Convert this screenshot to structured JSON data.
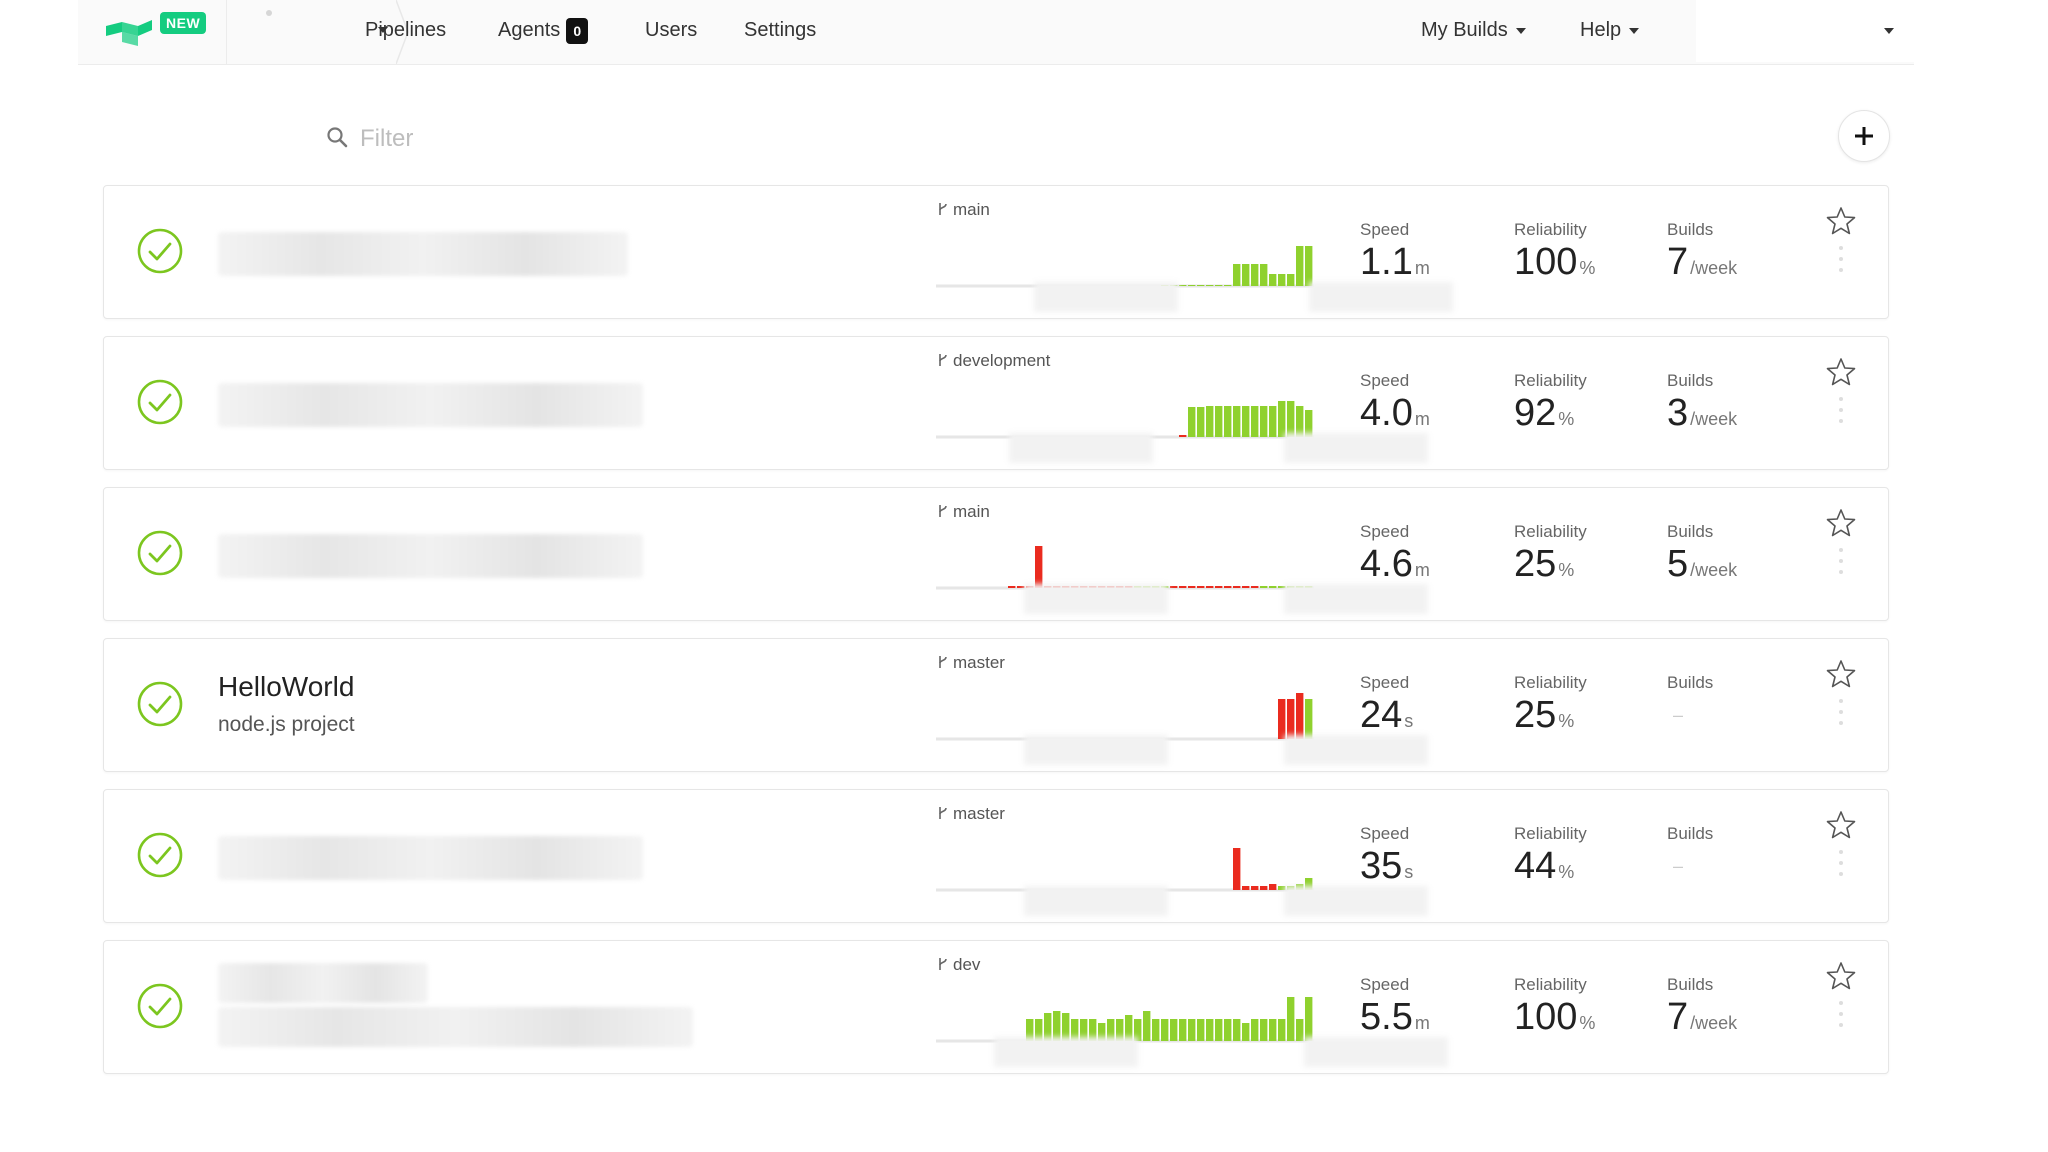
{
  "nav": {
    "new_badge": "NEW",
    "links": [
      "Pipelines",
      "Agents",
      "Users",
      "Settings"
    ],
    "agents_count": "0",
    "my_builds": "My Builds",
    "help": "Help"
  },
  "filter": {
    "placeholder": "Filter"
  },
  "colors": {
    "pass": "#8fd12e",
    "fail": "#ea2b1f",
    "brand": "#14cc80",
    "ok_icon": "#7cc61f"
  },
  "pipelines": [
    {
      "name": "",
      "description": "",
      "branch": "main",
      "speed": "1.1",
      "speed_unit": "m",
      "reliability": "100",
      "reliability_unit": "%",
      "builds": "7",
      "builds_unit": "/week",
      "history": [
        0,
        0,
        0,
        0,
        0,
        0,
        0,
        0,
        0,
        0,
        0,
        0,
        0,
        0,
        0,
        0,
        0,
        0,
        0,
        0,
        0,
        0,
        0,
        0,
        0,
        0,
        0,
        0,
        0,
        0,
        0,
        0,
        0,
        0,
        0,
        0,
        0,
        0,
        0,
        0,
        0,
        0,
        0,
        0,
        0,
        0,
        0,
        0,
        0,
        0,
        "p1",
        "p1",
        "p1",
        "p1",
        "p1",
        "p1",
        "p1",
        "p1",
        "p22",
        "p22",
        "p22",
        "p22",
        "p12",
        "p12",
        "p12",
        "p40",
        "p40"
      ]
    },
    {
      "name": "",
      "description": "",
      "branch": "development",
      "speed": "4.0",
      "speed_unit": "m",
      "reliability": "92",
      "reliability_unit": "%",
      "builds": "3",
      "builds_unit": "/week",
      "history": [
        "f2",
        "p30",
        "p30",
        "p31",
        "p31",
        "p31",
        "p31",
        "p31",
        "p31",
        "p31",
        "p31",
        "p36",
        "p36",
        "p31",
        "p27"
      ]
    },
    {
      "name": "",
      "description": "",
      "branch": "main",
      "speed": "4.6",
      "speed_unit": "m",
      "reliability": "25",
      "reliability_unit": "%",
      "builds": "5",
      "builds_unit": "/week",
      "history": [
        "f2",
        "f2",
        "f2",
        "f42",
        "f2",
        "f2",
        "f2",
        "f2",
        "f2",
        "f2",
        "f2",
        "f2",
        "f2",
        "f2",
        "p2",
        "p2",
        "p2",
        "p2",
        "f2",
        "f2",
        "f2",
        "f2",
        "f2",
        "f2",
        "f2",
        "f2",
        "f2",
        "f2",
        "p2",
        "p2",
        "p2",
        "p2",
        "p2",
        "p2"
      ]
    },
    {
      "name": "HelloWorld",
      "description": "node.js project",
      "branch": "master",
      "speed": "24",
      "speed_unit": "s",
      "reliability": "25",
      "reliability_unit": "%",
      "builds": "",
      "builds_unit": "",
      "history": [
        "f40",
        "f40",
        "f46",
        "p40"
      ]
    },
    {
      "name": "",
      "description": "",
      "branch": "master",
      "speed": "35",
      "speed_unit": "s",
      "reliability": "44",
      "reliability_unit": "%",
      "builds": "",
      "builds_unit": "",
      "history": [
        "f42",
        "f4",
        "f4",
        "f4",
        "f6",
        "p4",
        "p4",
        "p6",
        "p12"
      ]
    },
    {
      "name": "",
      "description": "",
      "branch": "dev",
      "speed": "5.5",
      "speed_unit": "m",
      "reliability": "100",
      "reliability_unit": "%",
      "builds": "7",
      "builds_unit": "/week",
      "history": [
        "p22",
        "p22",
        "p28",
        "p30",
        "p28",
        "p22",
        "p22",
        "p22",
        "p18",
        "p22",
        "p22",
        "p26",
        "p22",
        "p30",
        "p22",
        "p22",
        "p22",
        "p22",
        "p22",
        "p22",
        "p22",
        "p22",
        "p22",
        "p22",
        "p18",
        "p22",
        "p22",
        "p22",
        "p22",
        "p44",
        "p22",
        "p44"
      ]
    }
  ],
  "labels": {
    "speed": "Speed",
    "reliability": "Reliability",
    "builds": "Builds"
  }
}
